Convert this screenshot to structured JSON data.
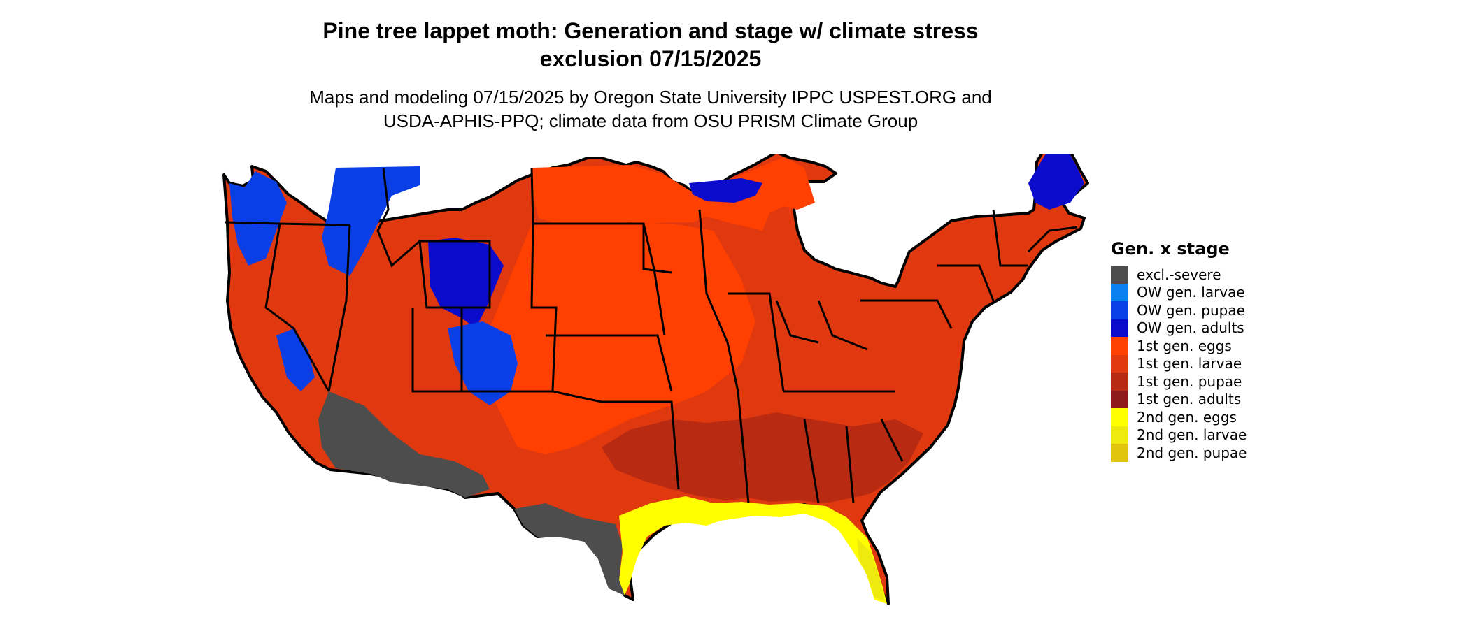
{
  "title": {
    "line1": "Pine tree lappet moth: Generation and stage w/ climate stress",
    "line2": "exclusion 07/15/2025"
  },
  "subtitle": {
    "line1": "Maps and modeling 07/15/2025 by Oregon State University IPPC USPEST.ORG and",
    "line2": "USDA-APHIS-PPQ; climate data from OSU PRISM Climate Group"
  },
  "legend": {
    "title": "Gen. x stage",
    "items": [
      {
        "label": "excl.-severe",
        "color": "#4d4d4d"
      },
      {
        "label": "OW gen. larvae",
        "color": "#0a7ff0"
      },
      {
        "label": "OW gen. pupae",
        "color": "#0a3fe6"
      },
      {
        "label": "OW gen. adults",
        "color": "#0b0bcc"
      },
      {
        "label": "1st gen. eggs",
        "color": "#ff4000"
      },
      {
        "label": "1st gen. larvae",
        "color": "#e0380f"
      },
      {
        "label": "1st gen. pupae",
        "color": "#b82a12"
      },
      {
        "label": "1st gen. adults",
        "color": "#8c1a1a"
      },
      {
        "label": "2nd gen. eggs",
        "color": "#ffff00"
      },
      {
        "label": "2nd gen. larvae",
        "color": "#eeea0e"
      },
      {
        "label": "2nd gen. pupae",
        "color": "#e0c50c"
      }
    ]
  }
}
